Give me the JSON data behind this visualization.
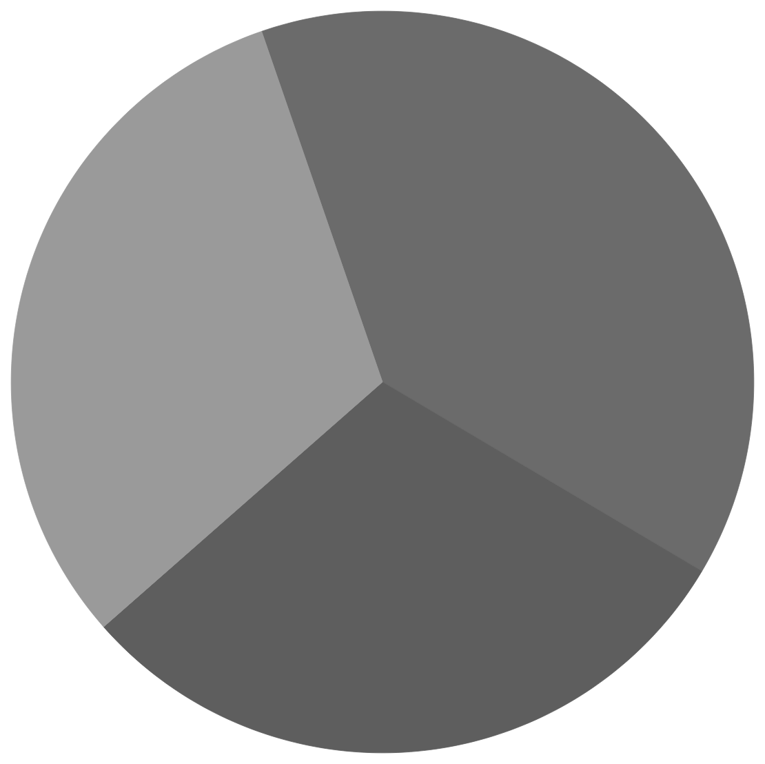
{
  "chart_data": {
    "type": "pie",
    "categories": [
      null,
      null,
      null
    ],
    "values": [
      38.8,
      30.0,
      31.2
    ],
    "colors": [
      "#6b6b6b",
      "#5e5e5e",
      "#9a9a9a"
    ]
  }
}
